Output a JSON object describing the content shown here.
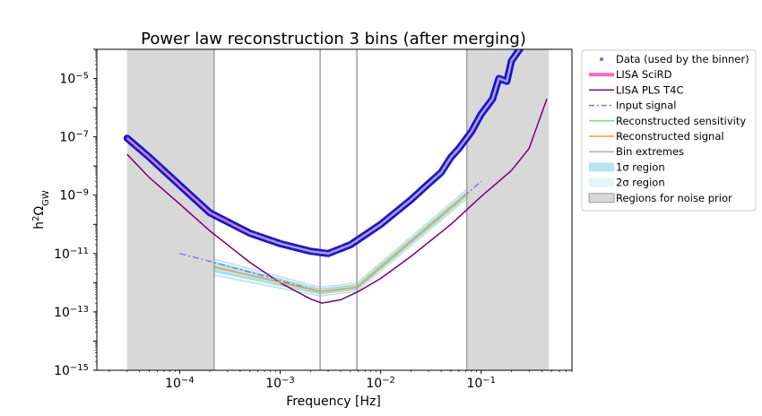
{
  "chart_data": {
    "type": "line",
    "title": "Power law reconstruction 3 bins (after merging)",
    "xlabel": "Frequency [Hz]",
    "ylabel": "h²Ω_GW",
    "ylabel_parts": {
      "base": "h",
      "sup": "2",
      "main": "Ω",
      "sub": "GW"
    },
    "x_scale": "log",
    "y_scale": "log",
    "xlim": [
      1.5e-05,
      0.8
    ],
    "ylim": [
      1e-15,
      0.0001
    ],
    "x_ticks": [
      {
        "value": 0.0001,
        "base": "10",
        "exp": "−4"
      },
      {
        "value": 0.001,
        "base": "10",
        "exp": "−3"
      },
      {
        "value": 0.01,
        "base": "10",
        "exp": "−2"
      },
      {
        "value": 0.1,
        "base": "10",
        "exp": "−1"
      }
    ],
    "y_ticks": [
      {
        "value": 1e-15,
        "base": "10",
        "exp": "−15"
      },
      {
        "value": 1e-13,
        "base": "10",
        "exp": "−13"
      },
      {
        "value": 1e-11,
        "base": "10",
        "exp": "−11"
      },
      {
        "value": 1e-09,
        "base": "10",
        "exp": "−9"
      },
      {
        "value": 1e-07,
        "base": "10",
        "exp": "−7"
      },
      {
        "value": 1e-05,
        "base": "10",
        "exp": "−5"
      }
    ],
    "grid": false,
    "legend_position": "outside-right",
    "legend": [
      {
        "label": "Data (used by the binner)",
        "kind": "marker",
        "color": "#6b6bff"
      },
      {
        "label": "LISA SciRD",
        "kind": "thick-line",
        "color": "#ff66b3"
      },
      {
        "label": "LISA PLS T4C",
        "kind": "line",
        "color": "#7a0077"
      },
      {
        "label": "Input signal",
        "kind": "dashdot",
        "color": "#7070f0"
      },
      {
        "label": "Reconstructed sensitivity",
        "kind": "line",
        "color": "#66ee66"
      },
      {
        "label": "Reconstructed signal",
        "kind": "line",
        "color": "#f0a020"
      },
      {
        "label": "Bin extremes",
        "kind": "line",
        "color": "#b0b0b0"
      },
      {
        "label": "1σ region",
        "kind": "patch",
        "color": "#b8e4f2"
      },
      {
        "label": "2σ region",
        "kind": "patch",
        "color": "#e3f6f8"
      },
      {
        "label": "Regions for noise prior",
        "kind": "patch",
        "color": "#d8d8d8"
      }
    ],
    "noise_prior_regions": [
      [
        3e-05,
        0.00022
      ],
      [
        0.072,
        0.47
      ]
    ],
    "bin_extremes": [
      0.00022,
      0.0025,
      0.0058,
      0.072
    ],
    "series": [
      {
        "name": "Data (used by the binner)",
        "color": "#1414dd",
        "x": [
          3e-05,
          5e-05,
          0.0001,
          0.0002,
          0.0005,
          0.001,
          0.002,
          0.003,
          0.005,
          0.01,
          0.02,
          0.03,
          0.04,
          0.05,
          0.06,
          0.08,
          0.1,
          0.13,
          0.15,
          0.18,
          0.2,
          0.25
        ],
        "y": [
          9e-08,
          2e-08,
          2.2e-09,
          2.5e-10,
          5e-11,
          2.2e-11,
          1.2e-11,
          1e-11,
          2e-11,
          1e-10,
          7e-10,
          2.5e-09,
          6e-09,
          2e-08,
          4e-08,
          1.5e-07,
          6e-07,
          2e-06,
          1e-05,
          8e-06,
          4e-05,
          0.00012
        ]
      },
      {
        "name": "LISA SciRD",
        "color": "#ff66b3",
        "x": [
          3e-05,
          5e-05,
          0.0001,
          0.0002,
          0.0005,
          0.001,
          0.002,
          0.003,
          0.005,
          0.01,
          0.02,
          0.03,
          0.04,
          0.05,
          0.06,
          0.08,
          0.1,
          0.13,
          0.15,
          0.18,
          0.2,
          0.25
        ],
        "y": [
          9e-08,
          2e-08,
          2.2e-09,
          2.5e-10,
          5e-11,
          2.2e-11,
          1.2e-11,
          1e-11,
          2e-11,
          1e-10,
          7e-10,
          2.5e-09,
          6e-09,
          2e-08,
          4e-08,
          1.5e-07,
          6e-07,
          2e-06,
          1e-05,
          8e-06,
          4e-05,
          0.00012
        ]
      },
      {
        "name": "LISA PLS T4C",
        "color": "#7a0077",
        "x": [
          3e-05,
          5e-05,
          0.0001,
          0.0002,
          0.0005,
          0.001,
          0.002,
          0.0026,
          0.004,
          0.006,
          0.01,
          0.02,
          0.05,
          0.1,
          0.2,
          0.3,
          0.45
        ],
        "y": [
          2.5e-08,
          4e-09,
          5e-10,
          6e-11,
          5e-12,
          1e-12,
          2.8e-13,
          2e-13,
          2.6e-13,
          5e-13,
          1.4e-12,
          8e-12,
          1e-10,
          9e-10,
          7e-09,
          4e-08,
          2e-06
        ]
      },
      {
        "name": "Input signal",
        "color": "#7070f0",
        "x": [
          0.0001,
          0.00022,
          0.0025,
          0.0058,
          0.072,
          0.1
        ],
        "y": [
          1e-11,
          5e-12,
          5e-13,
          7e-13,
          1.1e-09,
          3e-09
        ]
      },
      {
        "name": "Reconstructed sensitivity",
        "color": "#66ee66",
        "x": [
          0.00022,
          0.0025,
          0.0058,
          0.072
        ],
        "y": [
          3.5e-12,
          5e-13,
          7e-13,
          1.1e-09
        ]
      },
      {
        "name": "Reconstructed signal",
        "color": "#f0a020",
        "x": [
          0.00022,
          0.0025,
          0.0058,
          0.072
        ],
        "y": [
          3.5e-12,
          5e-13,
          7e-13,
          1.1e-09
        ]
      }
    ],
    "sigma1_band": {
      "x": [
        0.00022,
        0.0025,
        0.0058,
        0.072
      ],
      "lower": [
        2.5e-12,
        4.2e-13,
        6e-13,
        9e-10
      ],
      "upper": [
        5e-12,
        6e-13,
        8.5e-13,
        1.3e-09
      ]
    },
    "sigma2_band": {
      "x": [
        0.00022,
        0.0025,
        0.0058,
        0.072
      ],
      "lower": [
        1.8e-12,
        3.5e-13,
        5e-13,
        7.5e-10
      ],
      "upper": [
        6.5e-12,
        7e-13,
        1e-12,
        1.6e-09
      ]
    }
  }
}
